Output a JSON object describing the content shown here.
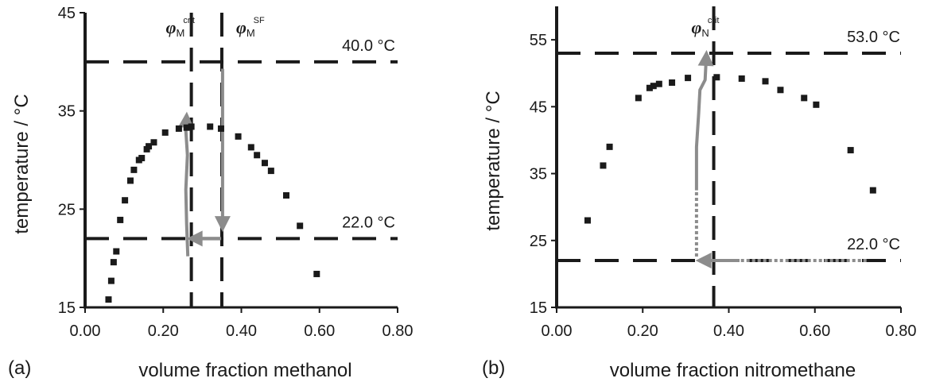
{
  "chart_data": [
    {
      "type": "scatter",
      "panel_label": "(a)",
      "xlabel": "volume fraction methanol",
      "ylabel": "temperature / °C",
      "xlim": [
        0,
        0.8
      ],
      "ylim": [
        15,
        45
      ],
      "xticks": [
        "0.00",
        "0.20",
        "0.40",
        "0.60",
        "0.80"
      ],
      "yticks": [
        "15",
        "25",
        "35",
        "45"
      ],
      "points": [
        [
          0.06,
          15.8
        ],
        [
          0.067,
          17.7
        ],
        [
          0.073,
          19.6
        ],
        [
          0.08,
          20.7
        ],
        [
          0.09,
          23.9
        ],
        [
          0.102,
          25.9
        ],
        [
          0.116,
          27.9
        ],
        [
          0.125,
          29.0
        ],
        [
          0.138,
          30.0
        ],
        [
          0.145,
          30.2
        ],
        [
          0.158,
          31.1
        ],
        [
          0.163,
          31.4
        ],
        [
          0.176,
          31.8
        ],
        [
          0.205,
          32.8
        ],
        [
          0.24,
          33.2
        ],
        [
          0.26,
          33.3
        ],
        [
          0.272,
          33.4
        ],
        [
          0.32,
          33.4
        ],
        [
          0.348,
          33.2
        ],
        [
          0.392,
          32.4
        ],
        [
          0.425,
          31.3
        ],
        [
          0.44,
          30.5
        ],
        [
          0.46,
          29.7
        ],
        [
          0.476,
          28.9
        ],
        [
          0.515,
          26.4
        ],
        [
          0.55,
          23.3
        ],
        [
          0.593,
          18.4
        ]
      ],
      "h_lines": [
        {
          "y": 40.0,
          "label": "40.0 °C"
        },
        {
          "y": 22.0,
          "label": "22.0 °C"
        }
      ],
      "v_lines": [
        {
          "x": 0.272,
          "symbol": "φ",
          "sub": "M",
          "sup": "crit"
        },
        {
          "x": 0.35,
          "symbol": "φ",
          "sub": "M",
          "sup": "SF"
        }
      ],
      "arrows": [
        {
          "style": "solid",
          "path": [
            [
              0.263,
              20.2
            ],
            [
              0.26,
              23.5
            ],
            [
              0.258,
              27.0
            ],
            [
              0.262,
              30.5
            ],
            [
              0.258,
              33.0
            ],
            [
              0.26,
              34.6
            ]
          ]
        },
        {
          "style": "solid",
          "path": [
            [
              0.352,
              39.3
            ],
            [
              0.352,
              28.0
            ],
            [
              0.352,
              23.0
            ]
          ]
        },
        {
          "style": "solid",
          "path": [
            [
              0.348,
              22.0
            ],
            [
              0.268,
              22.0
            ]
          ]
        }
      ]
    },
    {
      "type": "scatter",
      "panel_label": "(b)",
      "xlabel": "volume fraction nitromethane",
      "ylabel": "temperature / °C",
      "xlim": [
        0,
        0.8
      ],
      "ylim": [
        15,
        60
      ],
      "xticks": [
        "0.00",
        "0.20",
        "0.40",
        "0.60",
        "0.80"
      ],
      "yticks": [
        "15",
        "25",
        "35",
        "45",
        "55"
      ],
      "points": [
        [
          0.072,
          28.0
        ],
        [
          0.108,
          36.2
        ],
        [
          0.123,
          39.0
        ],
        [
          0.19,
          46.3
        ],
        [
          0.216,
          47.8
        ],
        [
          0.225,
          48.1
        ],
        [
          0.238,
          48.4
        ],
        [
          0.268,
          48.6
        ],
        [
          0.305,
          49.3
        ],
        [
          0.372,
          49.4
        ],
        [
          0.43,
          49.2
        ],
        [
          0.485,
          48.8
        ],
        [
          0.52,
          47.5
        ],
        [
          0.575,
          46.3
        ],
        [
          0.603,
          45.3
        ],
        [
          0.683,
          38.5
        ],
        [
          0.735,
          32.5
        ]
      ],
      "h_lines": [
        {
          "y": 53.0,
          "label": "53.0 °C"
        },
        {
          "y": 22.0,
          "label": "22.0 °C"
        }
      ],
      "v_lines": [
        {
          "x": 0.365,
          "symbol": "φ",
          "sub": "N",
          "sup": "crit"
        }
      ],
      "arrows": [
        {
          "style": "dotted",
          "path": [
            [
              0.72,
              22.0
            ],
            [
              0.425,
              22.0
            ]
          ]
        },
        {
          "style": "solid",
          "path": [
            [
              0.425,
              22.0
            ],
            [
              0.33,
              22.0
            ]
          ]
        },
        {
          "style": "dotted",
          "path": [
            [
              0.325,
              22.6
            ],
            [
              0.325,
              32.5
            ]
          ]
        },
        {
          "style": "solid",
          "path": [
            [
              0.325,
              32.5
            ],
            [
              0.325,
              39.0
            ],
            [
              0.33,
              44.0
            ],
            [
              0.333,
              47.5
            ],
            [
              0.345,
              49.0
            ],
            [
              0.348,
              53.0
            ]
          ]
        }
      ]
    }
  ]
}
